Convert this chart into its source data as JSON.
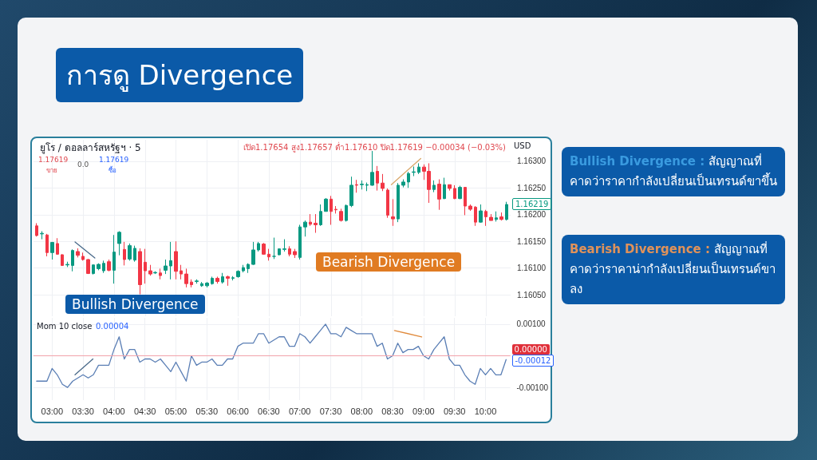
{
  "chart_data": [
    {
      "type": "candlestick",
      "title": "การดู Divergence",
      "x": [
        2.75,
        2.8333,
        2.9167,
        3,
        3.0833,
        3.1667,
        3.25,
        3.3333,
        3.4167,
        3.5,
        3.5833,
        3.6667,
        3.75,
        3.8333,
        3.9167,
        4,
        4.0833,
        4.1667,
        4.25,
        4.3333,
        4.4167,
        4.5,
        4.5833,
        4.6667,
        4.75,
        4.8333,
        4.9167,
        5,
        5.0833,
        5.1667,
        5.25,
        5.3333,
        5.4167,
        5.5,
        5.5833,
        5.6667,
        5.75,
        5.8333,
        5.9167,
        6,
        6.0833,
        6.1667,
        6.25,
        6.3333,
        6.4167,
        6.5,
        6.5833,
        6.6667,
        6.75,
        6.8333,
        6.9167,
        7,
        7.0833,
        7.1667,
        7.25,
        7.3333,
        7.4167,
        7.5,
        7.5833,
        7.6667,
        7.75,
        7.8333,
        7.9167,
        8,
        8.0833,
        8.1667,
        8.25,
        8.3333,
        8.4167,
        8.5,
        8.5833,
        8.6667,
        8.75,
        8.8333,
        8.9167,
        9,
        9.0833,
        9.1667,
        9.25,
        9.3333,
        9.4167,
        9.5,
        9.5833,
        9.6667,
        9.75,
        9.8333,
        9.9167,
        10,
        10.0833,
        10.1667,
        10.25,
        10.3333
      ],
      "ohlc": [
        [
          1.16179,
          1.16184,
          1.16159,
          1.16161
        ],
        [
          1.16164,
          1.16169,
          1.16154,
          1.16165
        ],
        [
          1.16162,
          1.16164,
          1.16122,
          1.16129
        ],
        [
          1.16129,
          1.16149,
          1.16116,
          1.16148
        ],
        [
          1.16146,
          1.16156,
          1.16125,
          1.16126
        ],
        [
          1.16125,
          1.16126,
          1.16104,
          1.16105
        ],
        [
          1.16106,
          1.16112,
          1.16102,
          1.16107
        ],
        [
          1.16105,
          1.16135,
          1.16094,
          1.16133
        ],
        [
          1.16131,
          1.16137,
          1.1612,
          1.16124
        ],
        [
          1.16122,
          1.16129,
          1.16114,
          1.16116
        ],
        [
          1.16116,
          1.16117,
          1.16089,
          1.1609
        ],
        [
          1.1609,
          1.16107,
          1.16088,
          1.16106
        ],
        [
          1.16099,
          1.16109,
          1.16096,
          1.16107
        ],
        [
          1.16095,
          1.16114,
          1.16091,
          1.16109
        ],
        [
          1.16112,
          1.16116,
          1.16094,
          1.16096
        ],
        [
          1.16096,
          1.16162,
          1.16071,
          1.1613
        ],
        [
          1.16146,
          1.16169,
          1.16124,
          1.16167
        ],
        [
          1.16135,
          1.16149,
          1.16105,
          1.16116
        ],
        [
          1.16117,
          1.16146,
          1.16114,
          1.16142
        ],
        [
          1.16115,
          1.16142,
          1.16112,
          1.16137
        ],
        [
          1.16131,
          1.16137,
          1.16051,
          1.16069
        ],
        [
          1.16111,
          1.16136,
          1.16071,
          1.16095
        ],
        [
          1.16095,
          1.16106,
          1.16086,
          1.16089
        ],
        [
          1.16091,
          1.16094,
          1.16089,
          1.16092
        ],
        [
          1.16091,
          1.16099,
          1.16079,
          1.16086
        ],
        [
          1.16096,
          1.16116,
          1.16089,
          1.16104
        ],
        [
          1.16104,
          1.16149,
          1.16079,
          1.16114
        ],
        [
          1.16131,
          1.1615,
          1.16079,
          1.16094
        ],
        [
          1.16095,
          1.16106,
          1.16079,
          1.16089
        ],
        [
          1.16089,
          1.16099,
          1.16064,
          1.16071
        ],
        [
          1.16074,
          1.16079,
          1.16064,
          1.16069
        ],
        [
          1.16075,
          1.16079,
          1.16071,
          1.16076
        ],
        [
          1.16067,
          1.16074,
          1.16065,
          1.16071
        ],
        [
          1.16067,
          1.16074,
          1.16064,
          1.16072
        ],
        [
          1.16071,
          1.16084,
          1.16069,
          1.16081
        ],
        [
          1.16081,
          1.16084,
          1.16071,
          1.16075
        ],
        [
          1.16074,
          1.16091,
          1.16071,
          1.16084
        ],
        [
          1.16084,
          1.16086,
          1.16067,
          1.16081
        ],
        [
          1.16081,
          1.16085,
          1.16077,
          1.16082
        ],
        [
          1.16084,
          1.16096,
          1.16082,
          1.16094
        ],
        [
          1.16095,
          1.16106,
          1.16092,
          1.16101
        ],
        [
          1.16099,
          1.16109,
          1.16091,
          1.16107
        ],
        [
          1.16107,
          1.16149,
          1.16106,
          1.16134
        ],
        [
          1.16134,
          1.16149,
          1.16131,
          1.16146
        ],
        [
          1.16145,
          1.16147,
          1.16125,
          1.16126
        ],
        [
          1.16126,
          1.16136,
          1.16114,
          1.16121
        ],
        [
          1.16122,
          1.16157,
          1.16117,
          1.16122
        ],
        [
          1.16125,
          1.16136,
          1.16124,
          1.16136
        ],
        [
          1.16135,
          1.16154,
          1.16131,
          1.16136
        ],
        [
          1.16136,
          1.16141,
          1.16122,
          1.16126
        ],
        [
          1.16131,
          1.16136,
          1.16119,
          1.16125
        ],
        [
          1.1612,
          1.16181,
          1.16116,
          1.16177
        ],
        [
          1.16177,
          1.16189,
          1.16159,
          1.16186
        ],
        [
          1.16186,
          1.16201,
          1.16179,
          1.16182
        ],
        [
          1.16184,
          1.16201,
          1.16166,
          1.16181
        ],
        [
          1.16181,
          1.16219,
          1.16179,
          1.16206
        ],
        [
          1.16206,
          1.16231,
          1.16206,
          1.16229
        ],
        [
          1.16229,
          1.16235,
          1.16181,
          1.16206
        ],
        [
          1.1621,
          1.16216,
          1.16202,
          1.16209
        ],
        [
          1.16206,
          1.16211,
          1.16187,
          1.16189
        ],
        [
          1.16189,
          1.16219,
          1.16187,
          1.16217
        ],
        [
          1.16217,
          1.16271,
          1.16214,
          1.16255
        ],
        [
          1.16256,
          1.16265,
          1.16241,
          1.16255
        ],
        [
          1.16256,
          1.16264,
          1.16247,
          1.16257
        ],
        [
          1.16255,
          1.1626,
          1.16244,
          1.16256
        ],
        [
          1.16255,
          1.16319,
          1.16254,
          1.16279
        ],
        [
          1.16281,
          1.16291,
          1.16245,
          1.16259
        ],
        [
          1.16259,
          1.16276,
          1.16244,
          1.16249
        ],
        [
          1.16246,
          1.16249,
          1.16194,
          1.16199
        ],
        [
          1.16196,
          1.16229,
          1.16179,
          1.16192
        ],
        [
          1.16192,
          1.16259,
          1.16186,
          1.16255
        ],
        [
          1.16255,
          1.16266,
          1.16251,
          1.16261
        ],
        [
          1.16261,
          1.1628,
          1.1625,
          1.16277
        ],
        [
          1.16279,
          1.1629,
          1.16272,
          1.1628
        ],
        [
          1.16279,
          1.16296,
          1.16276,
          1.16289
        ],
        [
          1.16289,
          1.16294,
          1.16265,
          1.16281
        ],
        [
          1.16281,
          1.16296,
          1.16222,
          1.16247
        ],
        [
          1.16247,
          1.16264,
          1.16242,
          1.16255
        ],
        [
          1.16257,
          1.16266,
          1.16209,
          1.16229
        ],
        [
          1.1623,
          1.16269,
          1.16229,
          1.16256
        ],
        [
          1.16256,
          1.16256,
          1.16245,
          1.16249
        ],
        [
          1.16249,
          1.16255,
          1.16229,
          1.1623
        ],
        [
          1.1623,
          1.16254,
          1.16229,
          1.16251
        ],
        [
          1.16251,
          1.16251,
          1.16199,
          1.16216
        ],
        [
          1.16216,
          1.16219,
          1.16207,
          1.1621
        ],
        [
          1.16214,
          1.16216,
          1.16179,
          1.16186
        ],
        [
          1.16186,
          1.16219,
          1.16185,
          1.16207
        ],
        [
          1.16206,
          1.16209,
          1.16179,
          1.16196
        ],
        [
          1.16195,
          1.16201,
          1.16189,
          1.16189
        ],
        [
          1.16191,
          1.16206,
          1.16187,
          1.16194
        ],
        [
          1.16196,
          1.16204,
          1.16189,
          1.16191
        ],
        [
          1.16191,
          1.16224,
          1.16189,
          1.16219
        ]
      ],
      "series": [
        {
          "type": "line",
          "x": [
            3.37,
            3.69
          ],
          "values": [
            1.16149,
            1.16119
          ],
          "color": "#4a6a8a"
        },
        {
          "type": "line",
          "x": [
            8.475,
            8.95
          ],
          "values": [
            1.16256,
            1.16305
          ],
          "color": "#d9a86c"
        }
      ],
      "xlim": [
        2.7,
        10.4
      ],
      "xticks": [
        {
          "value": 3,
          "label": null
        },
        {
          "value": 3.5,
          "label": null
        },
        {
          "value": 4,
          "label": null
        },
        {
          "value": 4.5,
          "label": null
        },
        {
          "value": 5,
          "label": null
        },
        {
          "value": 5.5,
          "label": null
        },
        {
          "value": 6,
          "label": null
        },
        {
          "value": 6.5,
          "label": null
        },
        {
          "value": 7,
          "label": null
        },
        {
          "value": 7.5,
          "label": null
        },
        {
          "value": 8,
          "label": null
        },
        {
          "value": 8.5,
          "label": null
        },
        {
          "value": 9,
          "label": null
        },
        {
          "value": 9.5,
          "label": null
        },
        {
          "value": 10,
          "label": null
        }
      ],
      "ylim": [
        1.1601,
        1.1634
      ],
      "yticks": [
        {
          "value": 1.1605,
          "label": "1.16050"
        },
        {
          "value": 1.161,
          "label": "1.16100"
        },
        {
          "value": 1.1615,
          "label": "1.16150"
        },
        {
          "value": 1.162,
          "label": "1.16200"
        },
        {
          "value": 1.1625,
          "label": "1.16250"
        },
        {
          "value": 1.163,
          "label": "1.16300"
        }
      ],
      "tick_labels": "y",
      "grid": true,
      "annotations": [
        "ยูโร / ดอลลาร์สหรัฐฯ · 5",
        "เปิด1.17654 สูง1.17657 ต่ำ1.17610 ปิด1.17619 −0.00034 (−0.03%)",
        "1.17619",
        "ขาย",
        "0.0",
        "1.17619",
        "ซื้อ",
        "USD",
        "1.16219",
        "Bullish Divergence",
        "Bearish Divergence"
      ]
    },
    {
      "type": "line",
      "title": "Mom 10 close",
      "x": [
        2.75,
        2.8333,
        2.9167,
        3,
        3.0833,
        3.1667,
        3.25,
        3.3333,
        3.4167,
        3.5,
        3.5833,
        3.6667,
        3.75,
        3.8333,
        3.9167,
        4,
        4.0833,
        4.1667,
        4.25,
        4.3333,
        4.4167,
        4.5,
        4.5833,
        4.6667,
        4.75,
        4.8333,
        4.9167,
        5,
        5.0833,
        5.1667,
        5.25,
        5.3333,
        5.4167,
        5.5,
        5.5833,
        5.6667,
        5.75,
        5.8333,
        5.9167,
        6,
        6.0833,
        6.1667,
        6.25,
        6.3333,
        6.4167,
        6.5,
        6.5833,
        6.6667,
        6.75,
        6.8333,
        6.9167,
        7,
        7.0833,
        7.1667,
        7.25,
        7.3333,
        7.4167,
        7.5,
        7.5833,
        7.6667,
        7.75,
        7.8333,
        7.9167,
        8,
        8.0833,
        8.1667,
        8.25,
        8.3333,
        8.4167,
        8.5,
        8.5833,
        8.6667,
        8.75,
        8.8333,
        8.9167,
        9,
        9.0833,
        9.1667,
        9.25,
        9.3333,
        9.4167,
        9.5,
        9.5833,
        9.6667,
        9.75,
        9.8333,
        9.9167,
        10,
        10.0833,
        10.1667,
        10.25,
        10.3333
      ],
      "series": [
        {
          "color": "#5b7fb5",
          "values": [
            -0.0008,
            -0.0008,
            -0.0008,
            -0.0004,
            -0.0006,
            -0.0009,
            -0.001,
            -0.0008,
            -0.0007,
            -0.0006,
            -0.0007,
            -0.0006,
            -0.0003,
            -0.0003,
            -0.0003,
            0.0002,
            0.0006,
            -0.0001,
            0.0002,
            0.0002,
            -0.0002,
            -0.0001,
            -0.0001,
            -0.0002,
            -0.0001,
            -0.0003,
            -0.0005,
            -0.0002,
            -0.0005,
            -0.0008,
            0,
            -0.0003,
            -0.0002,
            -0.0002,
            -0.0001,
            -0.0003,
            -0.0003,
            -0.0001,
            -0.0001,
            0.0003,
            0.0004,
            0.0004,
            0.0004,
            0.0007,
            0.0007,
            0.0004,
            0.0005,
            0.0006,
            0.0006,
            0.0003,
            0.0003,
            0.0007,
            0.0006,
            0.0004,
            0.0006,
            0.0008,
            0.001,
            0.0007,
            0.0007,
            0.0006,
            0.0009,
            0.0008,
            0.0007,
            0.0007,
            0.0007,
            0.0007,
            0.0003,
            0.0004,
            -0.0001,
            0,
            0.0004,
            0.0001,
            0.0002,
            0.0002,
            0.0003,
            0,
            -0.0001,
            0.0002,
            0.0004,
            0.0006,
            -0.0001,
            -0.0003,
            -0.0003,
            -0.0006,
            -0.0008,
            -0.0009,
            -0.0004,
            -0.0006,
            -0.0004,
            -0.0006,
            -0.0006,
            -0.00012
          ]
        },
        {
          "x": [
            3.37,
            3.66
          ],
          "values": [
            -0.0006,
            -0.0001
          ],
          "color": "#4a6a8a"
        },
        {
          "x": [
            8.53,
            8.97
          ],
          "values": [
            0.0008,
            0.0006
          ],
          "color": "#e08a3c"
        }
      ],
      "xlim": [
        2.7,
        10.4
      ],
      "xticks": [
        {
          "value": 3,
          "label": "03:00"
        },
        {
          "value": 3.5,
          "label": "03:30"
        },
        {
          "value": 4,
          "label": "04:00"
        },
        {
          "value": 4.5,
          "label": "04:30"
        },
        {
          "value": 5,
          "label": "05:00"
        },
        {
          "value": 5.5,
          "label": "05:30"
        },
        {
          "value": 6,
          "label": "06:00"
        },
        {
          "value": 6.5,
          "label": "06:30"
        },
        {
          "value": 7,
          "label": "07:00"
        },
        {
          "value": 7.5,
          "label": "07:30"
        },
        {
          "value": 8,
          "label": "08:00"
        },
        {
          "value": 8.5,
          "label": "08:30"
        },
        {
          "value": 9,
          "label": "09:00"
        },
        {
          "value": 9.5,
          "label": "09:30"
        },
        {
          "value": 10,
          "label": "10:00"
        }
      ],
      "ylim": [
        -0.0014,
        0.0012
      ],
      "yticks": [
        {
          "value": -0.001,
          "label": "-0.00100"
        },
        {
          "value": 0.001,
          "label": "0.00100"
        }
      ],
      "grid": true,
      "marker": "none",
      "ref_lines": [
        {
          "axis": "y",
          "value": 0,
          "label": "0.00000",
          "color": "#f2a3ab"
        }
      ],
      "annotations": [
        "0.00004",
        "-0.00012"
      ]
    },
    {
      "type": "other",
      "annotations": [
        "Bullish Divergence :",
        "สัญญาณที่คาดว่าราคากำลังเปลี่ยนเป็นเทรนด์ขาขึ้น",
        "Bearish Divergence :",
        "สัญญาณที่คาดว่าราคาน่ากำลังเปลี่ยนเป็นเทรนด์ขาลง"
      ]
    }
  ]
}
